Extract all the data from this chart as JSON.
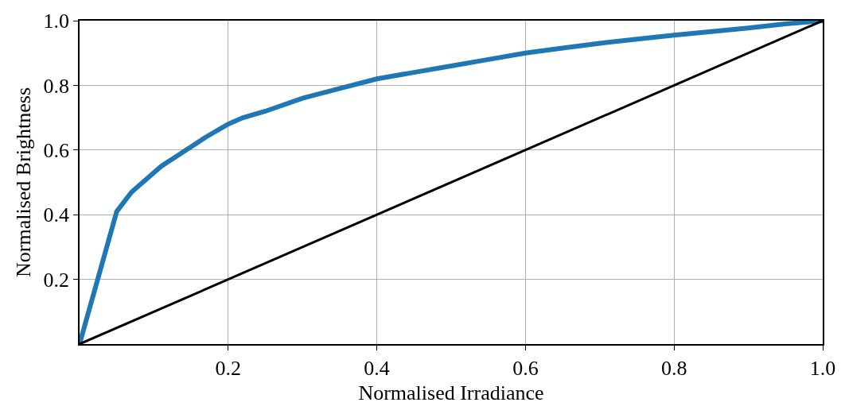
{
  "chart_data": {
    "type": "line",
    "xlabel": "Normalised Irradiance",
    "ylabel": "Normalised Brightness",
    "xlim": [
      0,
      1
    ],
    "ylim": [
      0,
      1
    ],
    "xticks": [
      0.2,
      0.4,
      0.6,
      0.8,
      {
        "value": 1,
        "label": "1.0"
      }
    ],
    "yticks": [
      0.2,
      0.4,
      0.6,
      0.8,
      {
        "value": 1,
        "label": "1.0"
      }
    ],
    "grid": true,
    "marker": "none",
    "line_style": "solid",
    "series": [
      {
        "color": "#1f77b4",
        "x": [
          0,
          0.05,
          0.06,
          0.07,
          0.08,
          0.09,
          0.1,
          0.11,
          0.12,
          0.13,
          0.15,
          0.17,
          0.2,
          0.22,
          0.25,
          0.3,
          0.35,
          0.4,
          0.45,
          0.5,
          0.55,
          0.6,
          0.65,
          0.7,
          0.75,
          0.8,
          0.85,
          0.9,
          0.95,
          1.0
        ],
        "values": [
          0,
          0.41,
          0.44,
          0.47,
          0.49,
          0.51,
          0.53,
          0.55,
          0.565,
          0.58,
          0.61,
          0.64,
          0.68,
          0.7,
          0.72,
          0.76,
          0.79,
          0.82,
          0.84,
          0.86,
          0.88,
          0.9,
          0.915,
          0.93,
          0.943,
          0.955,
          0.966,
          0.977,
          0.99,
          1.0
        ]
      },
      {
        "color": "#000000",
        "x": [
          0,
          1
        ],
        "values": [
          0,
          1
        ]
      }
    ]
  }
}
